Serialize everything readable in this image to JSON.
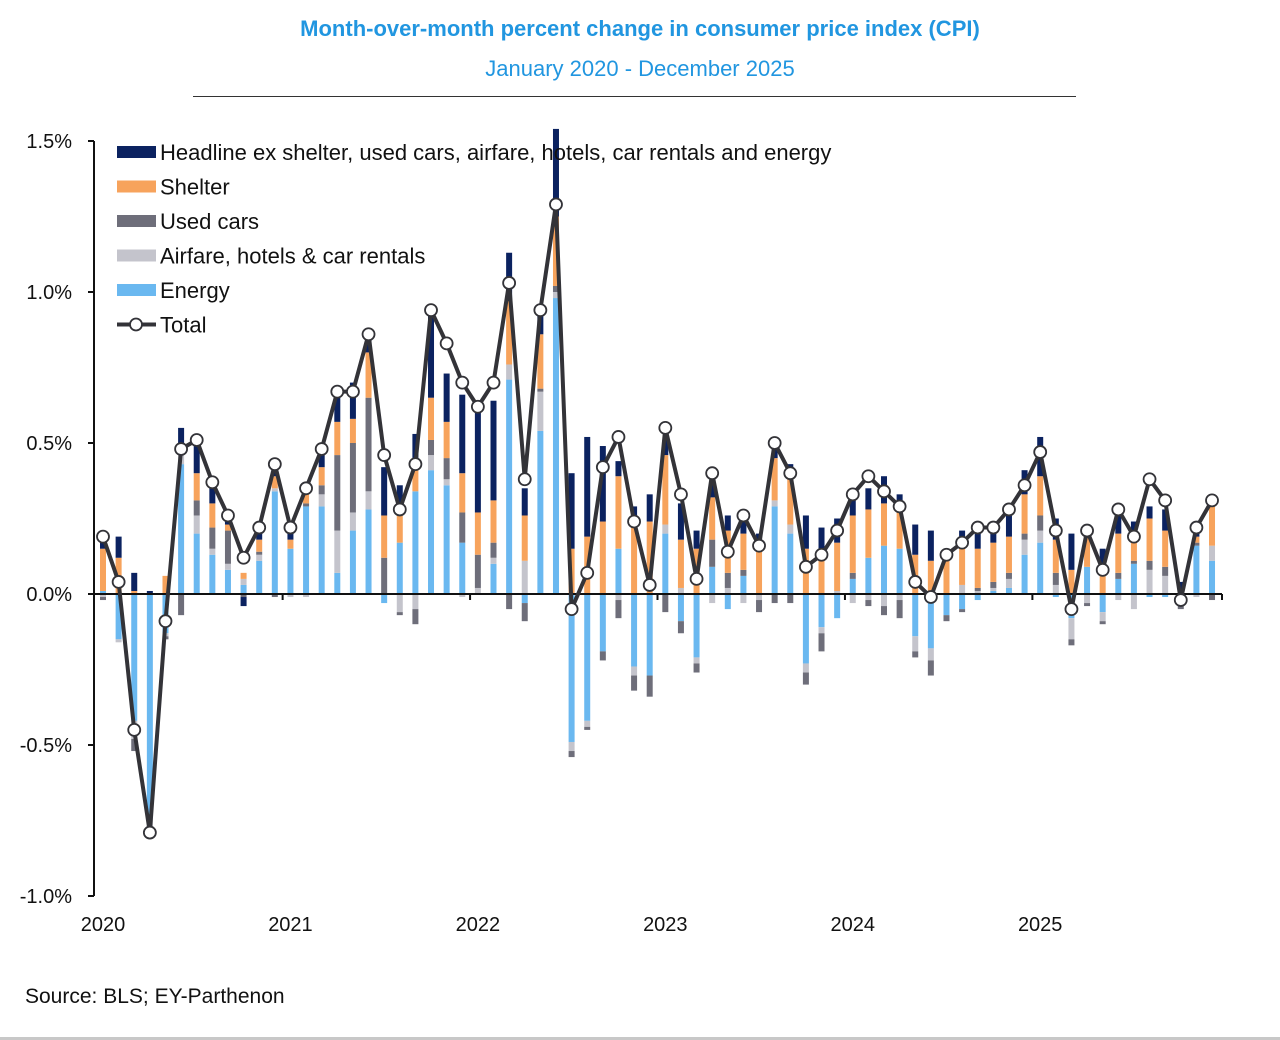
{
  "chart_data": {
    "type": "bar",
    "stacked": true,
    "title": "Month-over-month percent change in consumer price index (CPI)",
    "subtitle": "January 2020 - December 2025",
    "source": "Source: BLS; EY-Parthenon",
    "xlabel": "",
    "ylabel": "",
    "ylim": [
      -1.0,
      1.5
    ],
    "yticks": [
      1.5,
      1.0,
      0.5,
      0.0,
      -0.5,
      -1.0
    ],
    "ytick_labels": [
      "1.5%",
      "1.0%",
      "0.5%",
      "0.0%",
      "-0.5%",
      "-1.0%"
    ],
    "xtick_labels": [
      "2020",
      "2021",
      "2022",
      "2023",
      "2024",
      "2025"
    ],
    "legend_position": "top-left",
    "grid": false,
    "months": 72,
    "start": "2020-01",
    "series": [
      {
        "name": "Headline ex shelter, used cars, airfare, hotels, car rentals and energy",
        "color": "#0b2260",
        "values": [
          0.05,
          0.07,
          0.06,
          0.01,
          0.0,
          0.05,
          0.1,
          0.06,
          0.04,
          -0.03,
          0.04,
          0.06,
          0.05,
          0.03,
          0.06,
          0.09,
          0.12,
          0.06,
          0.16,
          0.1,
          0.12,
          0.29,
          0.16,
          0.26,
          0.35,
          0.33,
          0.16,
          0.09,
          0.08,
          0.29,
          0.25,
          0.33,
          0.25,
          0.05,
          0.06,
          0.09,
          0.05,
          0.12,
          0.06,
          0.05,
          0.05,
          0.05,
          0.05,
          0.05,
          0.02,
          0.11,
          0.08,
          0.08,
          0.05,
          0.07,
          0.09,
          0.06,
          0.1,
          0.1,
          0.04,
          0.05,
          0.08,
          0.07,
          0.11,
          0.08,
          0.13,
          0.07,
          0.12,
          0.04,
          0.05,
          0.09,
          0.05,
          0.04,
          0.07,
          0.03,
          0.04,
          0.03
        ]
      },
      {
        "name": "Shelter",
        "color": "#f7a35c",
        "values": [
          0.14,
          0.12,
          0.01,
          0.0,
          0.06,
          0.03,
          0.09,
          0.08,
          0.02,
          0.02,
          0.04,
          0.04,
          0.03,
          0.03,
          0.06,
          0.11,
          0.08,
          0.15,
          0.14,
          0.09,
          0.07,
          0.14,
          0.12,
          0.13,
          0.14,
          0.14,
          0.21,
          0.15,
          0.18,
          0.23,
          0.15,
          0.19,
          0.24,
          0.24,
          0.23,
          0.24,
          0.23,
          0.16,
          0.15,
          0.14,
          0.14,
          0.12,
          0.15,
          0.14,
          0.18,
          0.15,
          0.14,
          0.16,
          0.19,
          0.16,
          0.14,
          0.12,
          0.13,
          0.11,
          0.11,
          0.13,
          0.13,
          0.13,
          0.12,
          0.13,
          0.13,
          0.11,
          0.08,
          0.1,
          0.1,
          0.13,
          0.08,
          0.14,
          0.12,
          0.01,
          0.02,
          0.14
        ]
      },
      {
        "name": "Used cars",
        "color": "#6e6e7a",
        "values": [
          -0.01,
          0.0,
          -0.04,
          -0.01,
          -0.01,
          -0.07,
          0.05,
          0.07,
          0.11,
          -0.01,
          0.01,
          -0.01,
          0.0,
          0.01,
          0.03,
          0.25,
          0.23,
          0.31,
          0.12,
          -0.01,
          -0.05,
          0.05,
          0.07,
          0.1,
          0.11,
          0.05,
          -0.05,
          -0.06,
          0.01,
          0.02,
          -0.02,
          -0.01,
          -0.03,
          -0.06,
          -0.05,
          -0.07,
          -0.06,
          -0.04,
          -0.03,
          0.09,
          0.05,
          0.02,
          -0.04,
          -0.03,
          -0.03,
          -0.04,
          -0.06,
          0.0,
          0.02,
          -0.02,
          -0.03,
          -0.06,
          -0.02,
          -0.05,
          -0.02,
          -0.01,
          0.01,
          0.02,
          0.02,
          0.02,
          0.05,
          0.04,
          -0.02,
          -0.01,
          -0.01,
          0.02,
          0.01,
          0.03,
          0.03,
          -0.01,
          0.01,
          -0.02
        ]
      },
      {
        "name": "Airfare, hotels & car rentals",
        "color": "#c4c4cc",
        "values": [
          -0.01,
          -0.01,
          -0.06,
          -0.05,
          -0.01,
          0.04,
          0.06,
          0.02,
          0.02,
          0.02,
          0.02,
          0.01,
          -0.01,
          -0.01,
          0.04,
          0.14,
          0.06,
          0.06,
          0.0,
          -0.06,
          -0.05,
          0.05,
          0.02,
          -0.01,
          0.02,
          0.02,
          0.05,
          0.11,
          0.13,
          0.02,
          -0.03,
          -0.02,
          0.0,
          -0.02,
          -0.03,
          0.0,
          0.03,
          0.02,
          -0.02,
          -0.03,
          0.02,
          -0.03,
          -0.02,
          0.02,
          0.03,
          -0.03,
          -0.02,
          0.01,
          -0.03,
          -0.02,
          -0.04,
          -0.02,
          -0.05,
          -0.04,
          0.0,
          0.03,
          0.01,
          0.01,
          0.03,
          0.05,
          0.04,
          0.03,
          -0.07,
          -0.03,
          -0.03,
          -0.02,
          -0.05,
          0.08,
          0.06,
          -0.04,
          -0.01,
          0.05
        ]
      },
      {
        "name": "Energy",
        "color": "#6ab8f0",
        "values": [
          0.01,
          -0.15,
          -0.42,
          -0.74,
          -0.13,
          0.43,
          0.2,
          0.13,
          0.08,
          0.03,
          0.11,
          0.34,
          0.15,
          0.29,
          0.29,
          0.07,
          0.21,
          0.28,
          -0.03,
          0.17,
          0.34,
          0.41,
          0.36,
          0.17,
          0.0,
          0.1,
          0.71,
          -0.03,
          0.54,
          0.98,
          -0.49,
          -0.42,
          -0.19,
          0.15,
          -0.24,
          -0.27,
          0.2,
          -0.09,
          -0.21,
          0.09,
          -0.05,
          0.06,
          0.0,
          0.29,
          0.2,
          -0.23,
          -0.11,
          -0.08,
          0.05,
          0.12,
          0.16,
          0.15,
          -0.14,
          -0.18,
          -0.07,
          -0.05,
          -0.02,
          0.01,
          0.02,
          0.13,
          0.17,
          -0.01,
          -0.08,
          0.09,
          -0.06,
          0.05,
          0.1,
          -0.01,
          -0.01,
          0.0,
          0.16,
          0.11
        ]
      },
      {
        "name": "Total",
        "color": "#333338",
        "type": "line",
        "values": [
          0.19,
          0.04,
          -0.45,
          -0.79,
          -0.09,
          0.48,
          0.51,
          0.37,
          0.26,
          0.12,
          0.22,
          0.43,
          0.22,
          0.35,
          0.48,
          0.67,
          0.67,
          0.86,
          0.46,
          0.28,
          0.43,
          0.94,
          0.83,
          0.7,
          0.62,
          0.7,
          1.03,
          0.38,
          0.94,
          1.29,
          -0.05,
          0.07,
          0.42,
          0.52,
          0.24,
          0.03,
          0.55,
          0.33,
          0.05,
          0.4,
          0.14,
          0.26,
          0.16,
          0.5,
          0.4,
          0.09,
          0.13,
          0.21,
          0.33,
          0.39,
          0.34,
          0.29,
          0.04,
          -0.01,
          0.13,
          0.17,
          0.22,
          0.22,
          0.28,
          0.36,
          0.47,
          0.21,
          -0.05,
          0.21,
          0.08,
          0.28,
          0.19,
          0.38,
          0.31,
          -0.02,
          0.22,
          0.31
        ]
      }
    ]
  }
}
